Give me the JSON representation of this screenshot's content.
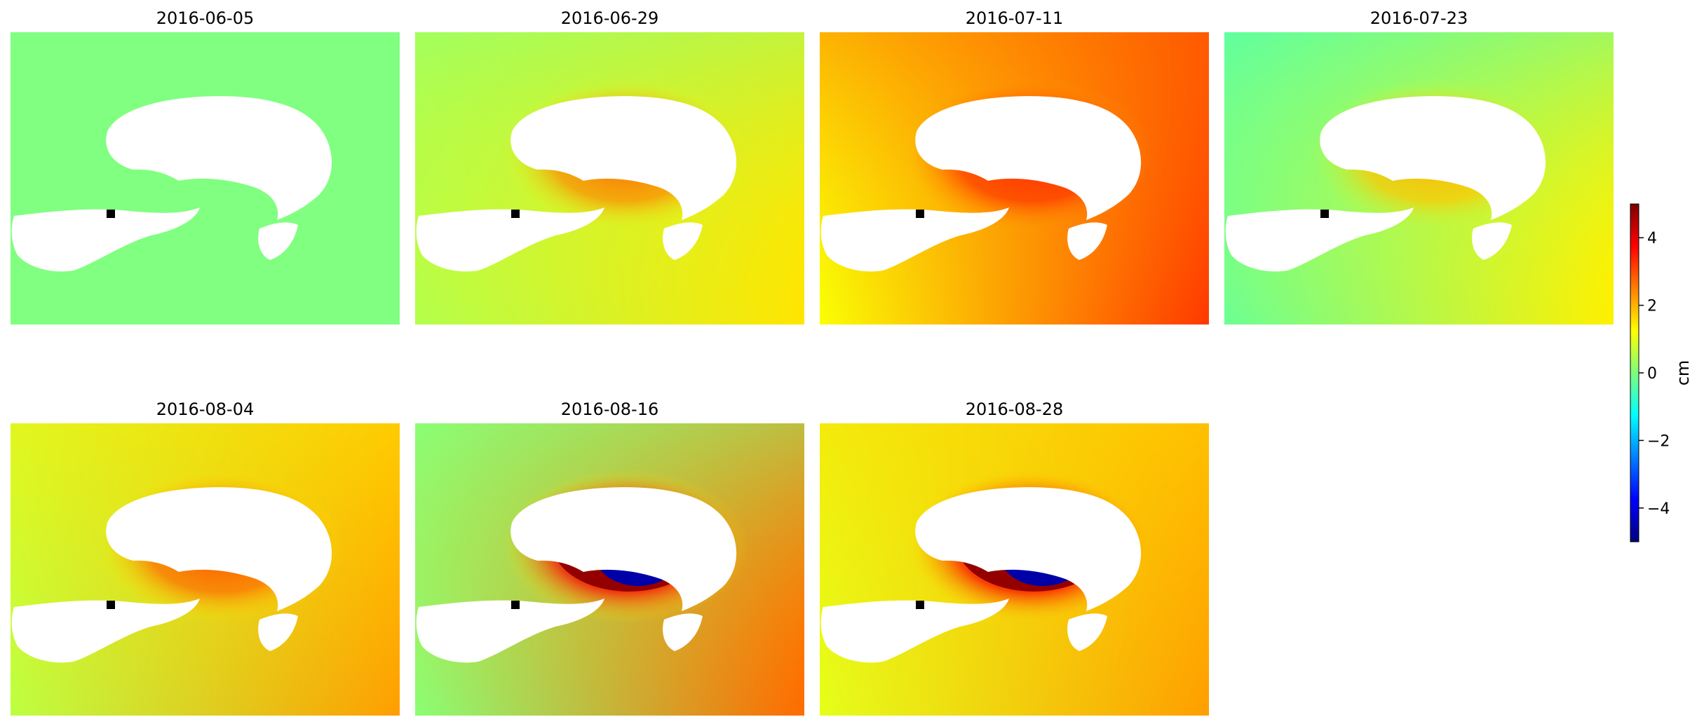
{
  "chart_data": {
    "type": "heatmap",
    "description_source": "small-multiple displacement maps",
    "panels": [
      {
        "title": "2016-06-05",
        "mode": "flat",
        "center": 0.0,
        "east": 0.0,
        "north": 0.0,
        "eye": 0.0
      },
      {
        "title": "2016-06-29",
        "mode": "eye",
        "center": 1.0,
        "east": 0.5,
        "north": -0.8,
        "eye": 2.8
      },
      {
        "title": "2016-07-11",
        "mode": "eye",
        "center": 2.2,
        "east": 1.0,
        "north": 0.4,
        "eye": 3.3
      },
      {
        "title": "2016-07-23",
        "mode": "eye",
        "center": 0.6,
        "east": 0.8,
        "north": -1.0,
        "eye": 2.0
      },
      {
        "title": "2016-08-04",
        "mode": "eye",
        "center": 1.4,
        "east": 0.8,
        "north": 0.0,
        "eye": 3.0
      },
      {
        "title": "2016-08-16",
        "mode": "collapse",
        "center": 1.4,
        "east": 1.3,
        "north": -1.3,
        "eye": 5.0
      },
      {
        "title": "2016-08-28",
        "mode": "collapse",
        "center": 1.6,
        "east": 0.6,
        "north": 0.0,
        "eye": 5.0
      }
    ],
    "reference_point_marker": "black square",
    "colormap": "jet",
    "colorbar": {
      "label": "cm",
      "range": [
        -5,
        5
      ],
      "ticks": [
        4,
        2,
        0,
        -2,
        -4
      ],
      "tick_labels": [
        "4",
        "2",
        "0",
        "−2",
        "−4"
      ]
    }
  }
}
